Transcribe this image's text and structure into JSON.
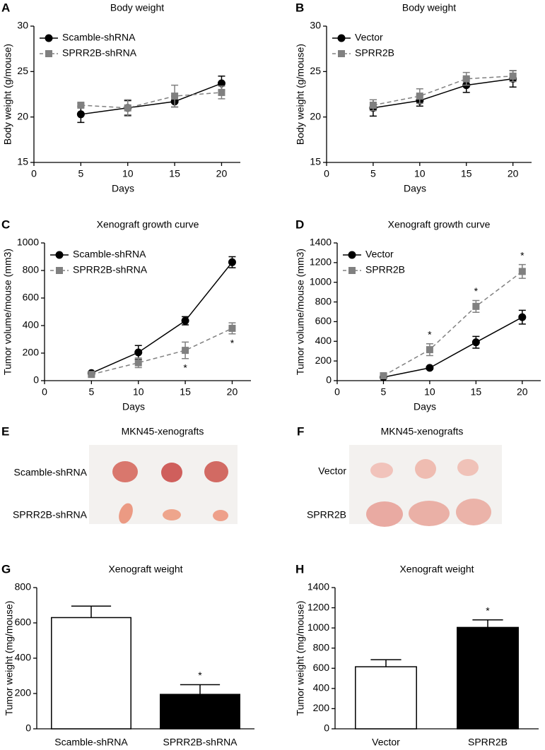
{
  "chart_data": [
    {
      "type": "line",
      "label": "A",
      "title": "Body weight",
      "x_label": "Days",
      "y_label": "Body weight (g/mouse)",
      "x": [
        5,
        10,
        15,
        20
      ],
      "xlim": [
        0,
        22
      ],
      "xticks": [
        0,
        5,
        10,
        15,
        20
      ],
      "ylim": [
        15,
        30
      ],
      "yticks": [
        15,
        20,
        25,
        30
      ],
      "series": [
        {
          "name": "Scamble-shRNA",
          "color": "#000000",
          "marker": "circle",
          "dashed": false,
          "values": [
            20.3,
            21.0,
            21.7,
            23.7
          ],
          "errors": [
            0.9,
            0.8,
            0.6,
            0.8
          ]
        },
        {
          "name": "SPRR2B-shRNA",
          "color": "#808080",
          "marker": "square",
          "dashed": true,
          "values": [
            21.3,
            21.0,
            22.3,
            22.7
          ],
          "errors": [
            0.2,
            0.9,
            1.2,
            0.7
          ]
        }
      ]
    },
    {
      "type": "line",
      "label": "B",
      "title": "Body weight",
      "x_label": "Days",
      "y_label": "Body weight (g/mouse)",
      "x": [
        5,
        10,
        15,
        20
      ],
      "xlim": [
        0,
        22
      ],
      "xticks": [
        0,
        5,
        10,
        15,
        20
      ],
      "ylim": [
        15,
        30
      ],
      "yticks": [
        15,
        20,
        25,
        30
      ],
      "series": [
        {
          "name": "Vector",
          "color": "#000000",
          "marker": "circle",
          "dashed": false,
          "values": [
            21.0,
            21.8,
            23.5,
            24.2
          ],
          "errors": [
            0.9,
            0.6,
            0.8,
            0.9
          ]
        },
        {
          "name": "SPRR2B",
          "color": "#808080",
          "marker": "square",
          "dashed": true,
          "values": [
            21.3,
            22.3,
            24.2,
            24.5
          ],
          "errors": [
            0.6,
            0.8,
            0.7,
            0.6
          ]
        }
      ]
    },
    {
      "type": "line",
      "label": "C",
      "title": "Xenograft growth curve",
      "x_label": "Days",
      "y_label": "Tumor volume/mouse (mm3)",
      "x": [
        5,
        10,
        15,
        20
      ],
      "xlim": [
        0,
        22
      ],
      "xticks": [
        0,
        5,
        10,
        15,
        20
      ],
      "ylim": [
        0,
        1000
      ],
      "yticks": [
        0,
        200,
        400,
        600,
        800,
        1000
      ],
      "series": [
        {
          "name": "Scamble-shRNA",
          "color": "#000000",
          "marker": "circle",
          "dashed": false,
          "values": [
            55,
            205,
            435,
            860
          ],
          "errors": [
            10,
            50,
            30,
            40
          ]
        },
        {
          "name": "SPRR2B-shRNA",
          "color": "#808080",
          "marker": "square",
          "dashed": true,
          "values": [
            45,
            130,
            220,
            380
          ],
          "errors": [
            10,
            35,
            60,
            40
          ]
        }
      ],
      "annotations": [
        {
          "x": 15,
          "series": 1,
          "position": "below",
          "text": "*"
        },
        {
          "x": 20,
          "series": 1,
          "position": "below",
          "text": "*"
        }
      ]
    },
    {
      "type": "line",
      "label": "D",
      "title": "Xenograft growth curve",
      "x_label": "Days",
      "y_label": "Tumor volume/mouse (mm3)",
      "x": [
        5,
        10,
        15,
        20
      ],
      "xlim": [
        0,
        22
      ],
      "xticks": [
        0,
        5,
        10,
        15,
        20
      ],
      "ylim": [
        0,
        1400
      ],
      "yticks": [
        0,
        200,
        400,
        600,
        800,
        1000,
        1200,
        1400
      ],
      "series": [
        {
          "name": "Vector",
          "color": "#000000",
          "marker": "circle",
          "dashed": false,
          "values": [
            35,
            130,
            390,
            645
          ],
          "errors": [
            10,
            15,
            60,
            70
          ]
        },
        {
          "name": "SPRR2B",
          "color": "#808080",
          "marker": "square",
          "dashed": true,
          "values": [
            50,
            315,
            755,
            1110
          ],
          "errors": [
            10,
            60,
            60,
            70
          ]
        }
      ],
      "annotations": [
        {
          "x": 10,
          "series": 1,
          "position": "above",
          "text": "*"
        },
        {
          "x": 15,
          "series": 1,
          "position": "above",
          "text": "*"
        },
        {
          "x": 20,
          "series": 1,
          "position": "above",
          "text": "*"
        }
      ]
    },
    {
      "type": "bar",
      "label": "G",
      "title": "Xenograft weight",
      "y_label": "Tumor weight (mg/mouse)",
      "categories": [
        "Scamble-shRNA",
        "SPRR2B-shRNA"
      ],
      "values": [
        630,
        195
      ],
      "errors": [
        65,
        55
      ],
      "colors": [
        "#ffffff",
        "#000000"
      ],
      "ylim": [
        0,
        800
      ],
      "yticks": [
        0,
        200,
        400,
        600,
        800
      ],
      "annotations": [
        {
          "category": "SPRR2B-shRNA",
          "text": "*"
        }
      ]
    },
    {
      "type": "bar",
      "label": "H",
      "title": "Xenograft weight",
      "y_label": "Tumor weight (mg/mouse)",
      "categories": [
        "Vector",
        "SPRR2B"
      ],
      "values": [
        615,
        1005
      ],
      "errors": [
        70,
        75
      ],
      "colors": [
        "#ffffff",
        "#000000"
      ],
      "ylim": [
        0,
        1400
      ],
      "yticks": [
        0,
        200,
        400,
        600,
        800,
        1000,
        1200,
        1400
      ],
      "annotations": [
        {
          "category": "SPRR2B",
          "text": "*"
        }
      ]
    }
  ],
  "photos": [
    {
      "label": "E",
      "title": "MKN45-xenografts",
      "rows": [
        "Scamble-shRNA",
        "SPRR2B-shRNA"
      ]
    },
    {
      "label": "F",
      "title": "MKN45-xenografts",
      "rows": [
        "Vector",
        "SPRR2B"
      ]
    }
  ]
}
